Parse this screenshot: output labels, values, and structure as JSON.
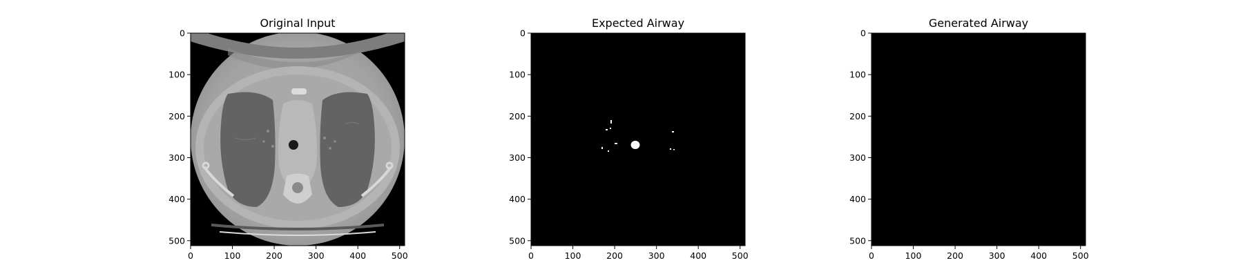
{
  "panels": [
    {
      "title": "Original Input"
    },
    {
      "title": "Expected Airway"
    },
    {
      "title": "Generated Airway"
    }
  ],
  "axes": {
    "x_ticks": [
      "0",
      "100",
      "200",
      "300",
      "400",
      "500"
    ],
    "y_ticks": [
      "0",
      "100",
      "200",
      "300",
      "400",
      "500"
    ],
    "x_range": [
      0,
      512
    ],
    "y_range": [
      0,
      512
    ]
  },
  "colors": {
    "background": "#ffffff",
    "image_background": "#000000",
    "axis": "#000000"
  }
}
